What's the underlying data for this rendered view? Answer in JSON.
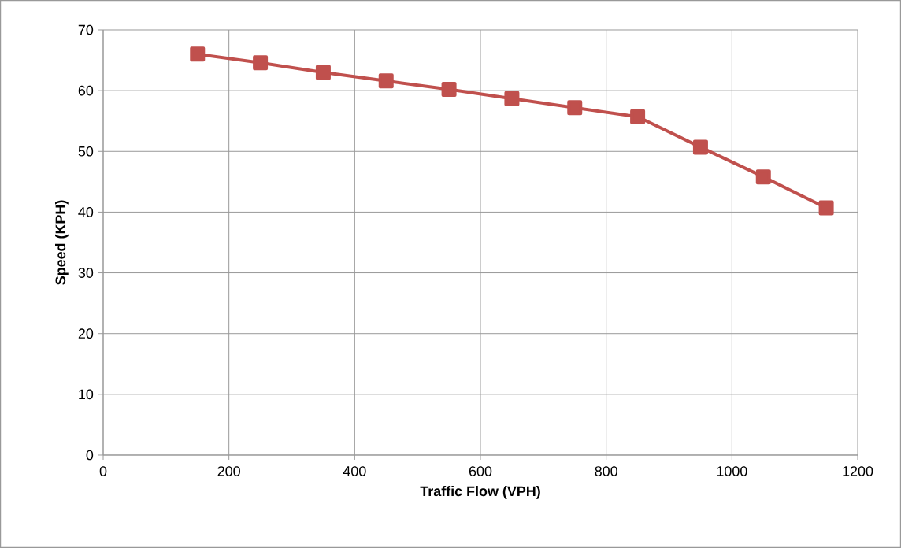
{
  "chart_data": {
    "type": "line",
    "xlabel": "Traffic Flow (VPH)",
    "ylabel": "Speed (KPH)",
    "x": [
      150,
      250,
      350,
      450,
      550,
      650,
      750,
      850,
      950,
      1050,
      1150
    ],
    "series": [
      {
        "color": "#c0504d",
        "values": [
          66.0,
          64.6,
          63.0,
          61.6,
          60.2,
          58.7,
          57.2,
          55.7,
          50.7,
          45.8,
          40.7
        ]
      }
    ],
    "xlim": [
      0,
      1200
    ],
    "xticks": [
      0,
      200,
      400,
      600,
      800,
      1000,
      1200
    ],
    "ylim": [
      0,
      70
    ],
    "yticks": [
      0,
      10,
      20,
      30,
      40,
      50,
      60,
      70
    ],
    "grid": true,
    "marker": "square",
    "line_style": "solid"
  }
}
